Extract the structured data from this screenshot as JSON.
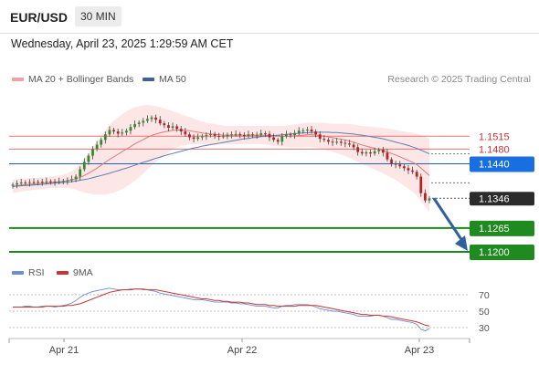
{
  "header": {
    "symbol": "EUR/USD",
    "timeframe": "30 MIN",
    "datetime": "Wednesday, April 23, 2025 1:29:59 AM CET"
  },
  "legend": {
    "ma20_bb": "MA 20 + Bollinger Bands",
    "ma50": "MA 50",
    "credit": "Research © 2025 Trading Central",
    "rsi": "RSI",
    "rsi_ma": "9MA"
  },
  "colors": {
    "bb_fill": "#fde3e3",
    "bb_line": "#f4a0a0",
    "ma20": "#e07a7a",
    "ma50": "#5b7fb4",
    "up": "#2e8b2e",
    "down": "#b22222",
    "resistance": "#e57373",
    "pivot": "#1f5fbf",
    "support": "#1a8a1a",
    "arrow": "#2f5f9e",
    "rsi": "#6a8fd8",
    "rsi_ma": "#cc3333"
  },
  "chart_data": [
    {
      "type": "candlestick",
      "ylim": [
        1.1185,
        1.165
      ],
      "x_labels": [
        "Apr 21",
        "Apr 22",
        "Apr 23"
      ],
      "levels": [
        {
          "value": 1.1515,
          "label": "1.1515",
          "kind": "resistance"
        },
        {
          "value": 1.148,
          "label": "1.1480",
          "kind": "resistance"
        },
        {
          "value": 1.144,
          "label": "1.1440",
          "kind": "pivot"
        },
        {
          "value": 1.1346,
          "label": "1.1346",
          "kind": "last"
        },
        {
          "value": 1.1265,
          "label": "1.1265",
          "kind": "support"
        },
        {
          "value": 1.12,
          "label": "1.1200",
          "kind": "support"
        }
      ],
      "close_series": [
        1.1383,
        1.1387,
        1.1389,
        1.1388,
        1.139,
        1.1389,
        1.1391,
        1.139,
        1.1392,
        1.1391,
        1.139,
        1.1392,
        1.1393,
        1.1395,
        1.1398,
        1.1405,
        1.1425,
        1.1445,
        1.1462,
        1.148,
        1.1492,
        1.1505,
        1.152,
        1.1532,
        1.1528,
        1.1522,
        1.1525,
        1.153,
        1.154,
        1.1548,
        1.1552,
        1.1557,
        1.1562,
        1.1566,
        1.156,
        1.155,
        1.1545,
        1.1538,
        1.1542,
        1.1535,
        1.1528,
        1.152,
        1.1512,
        1.1508,
        1.1512,
        1.1515,
        1.1518,
        1.1521,
        1.1516,
        1.1514,
        1.1515,
        1.1519,
        1.152,
        1.1521,
        1.1518,
        1.1516,
        1.152,
        1.1518,
        1.1519,
        1.1523,
        1.1521,
        1.1512,
        1.1505,
        1.15,
        1.1515,
        1.152,
        1.1518,
        1.1524,
        1.153,
        1.1531,
        1.1533,
        1.1528,
        1.152,
        1.1508,
        1.1505,
        1.15,
        1.1498,
        1.15,
        1.1497,
        1.1495,
        1.1492,
        1.1485,
        1.1472,
        1.1468,
        1.1471,
        1.1468,
        1.1474,
        1.1478,
        1.147,
        1.1452,
        1.144,
        1.1438,
        1.1433,
        1.1428,
        1.1422,
        1.1418,
        1.1405,
        1.136,
        1.134,
        1.1346
      ],
      "ma20": [
        1.1378,
        1.138,
        1.1382,
        1.1383,
        1.1384,
        1.1385,
        1.1386,
        1.1387,
        1.1388,
        1.1389,
        1.139,
        1.1391,
        1.1392,
        1.1394,
        1.1396,
        1.1399,
        1.1403,
        1.1408,
        1.1414,
        1.1421,
        1.1428,
        1.1436,
        1.1444,
        1.1452,
        1.1459,
        1.1466,
        1.1473,
        1.148,
        1.1487,
        1.1494,
        1.15,
        1.1506,
        1.1512,
        1.1517,
        1.1521,
        1.1524,
        1.1527,
        1.1529,
        1.1531,
        1.1532,
        1.1532,
        1.1531,
        1.153,
        1.1528,
        1.1526,
        1.1524,
        1.1522,
        1.1521,
        1.152,
        1.1519,
        1.1518,
        1.1518,
        1.1518,
        1.1518,
        1.1518,
        1.1518,
        1.1518,
        1.1518,
        1.1518,
        1.1518,
        1.1518,
        1.1517,
        1.1516,
        1.1515,
        1.1515,
        1.1515,
        1.1515,
        1.1516,
        1.1517,
        1.1518,
        1.1519,
        1.1519,
        1.1518,
        1.1517,
        1.1515,
        1.1513,
        1.1511,
        1.1509,
        1.1507,
        1.1505,
        1.1502,
        1.1499,
        1.1495,
        1.1491,
        1.1488,
        1.1485,
        1.1482,
        1.1479,
        1.1476,
        1.1472,
        1.1468,
        1.1464,
        1.1459,
        1.1454,
        1.1449,
        1.1444,
        1.1438,
        1.1428,
        1.1418,
        1.1408
      ],
      "ma50": [
        1.1378,
        1.1379,
        1.138,
        1.1381,
        1.1381,
        1.1382,
        1.1383,
        1.1384,
        1.1385,
        1.1386,
        1.1387,
        1.1388,
        1.1389,
        1.139,
        1.1391,
        1.1393,
        1.1395,
        1.1397,
        1.1399,
        1.1402,
        1.1405,
        1.1408,
        1.1411,
        1.1414,
        1.1418,
        1.1421,
        1.1425,
        1.1428,
        1.1432,
        1.1436,
        1.144,
        1.1444,
        1.1447,
        1.1451,
        1.1455,
        1.1458,
        1.1462,
        1.1465,
        1.1468,
        1.1471,
        1.1474,
        1.1477,
        1.148,
        1.1483,
        1.1485,
        1.1488,
        1.149,
        1.1492,
        1.1494,
        1.1496,
        1.1498,
        1.15,
        1.1502,
        1.1504,
        1.1506,
        1.1508,
        1.1509,
        1.1511,
        1.1512,
        1.1514,
        1.1515,
        1.1516,
        1.1517,
        1.1518,
        1.1519,
        1.152,
        1.1521,
        1.1522,
        1.1523,
        1.1524,
        1.1525,
        1.1525,
        1.1526,
        1.1526,
        1.1526,
        1.1526,
        1.1525,
        1.1525,
        1.1524,
        1.1523,
        1.1522,
        1.1521,
        1.1519,
        1.1518,
        1.1516,
        1.1514,
        1.1512,
        1.151,
        1.1508,
        1.1505,
        1.1502,
        1.1499,
        1.1496,
        1.1493,
        1.149,
        1.1486,
        1.1482,
        1.1477,
        1.1472,
        1.1467
      ],
      "bb_width": [
        0.0018,
        0.0018,
        0.0018,
        0.0017,
        0.0017,
        0.0016,
        0.0016,
        0.0016,
        0.0016,
        0.0016,
        0.0016,
        0.0017,
        0.0018,
        0.002,
        0.0024,
        0.003,
        0.0038,
        0.0046,
        0.0055,
        0.0064,
        0.0072,
        0.008,
        0.0088,
        0.0094,
        0.0098,
        0.01,
        0.0102,
        0.0103,
        0.0102,
        0.01,
        0.0097,
        0.0093,
        0.0088,
        0.0082,
        0.0076,
        0.007,
        0.0064,
        0.0058,
        0.0052,
        0.0047,
        0.0043,
        0.004,
        0.0037,
        0.0035,
        0.0033,
        0.0031,
        0.003,
        0.0029,
        0.0028,
        0.0027,
        0.0026,
        0.0025,
        0.0025,
        0.0025,
        0.0025,
        0.0025,
        0.0025,
        0.0025,
        0.0025,
        0.0025,
        0.0026,
        0.0026,
        0.0027,
        0.0028,
        0.0028,
        0.0029,
        0.003,
        0.0031,
        0.0032,
        0.0032,
        0.0033,
        0.0033,
        0.0034,
        0.0035,
        0.0036,
        0.0037,
        0.0038,
        0.004,
        0.0042,
        0.0044,
        0.0046,
        0.0048,
        0.005,
        0.0052,
        0.0054,
        0.0056,
        0.0058,
        0.006,
        0.0062,
        0.0064,
        0.0066,
        0.0068,
        0.0071,
        0.0074,
        0.0077,
        0.008,
        0.0084,
        0.009,
        0.0096,
        0.01
      ],
      "forecast_target": 1.12
    },
    {
      "type": "line",
      "ylim": [
        20,
        90
      ],
      "ticks": [
        70,
        50,
        30
      ],
      "rsi": [
        55,
        55,
        55,
        56,
        56,
        55,
        55,
        56,
        56,
        56,
        55,
        56,
        57,
        58,
        60,
        63,
        67,
        70,
        72,
        74,
        75,
        76,
        77,
        78,
        77,
        76,
        76,
        76,
        77,
        77,
        77,
        76,
        76,
        75,
        74,
        72,
        71,
        70,
        69,
        68,
        67,
        66,
        65,
        64,
        64,
        64,
        63,
        62,
        61,
        61,
        61,
        61,
        60,
        60,
        59,
        59,
        58,
        57,
        56,
        56,
        56,
        55,
        54,
        54,
        56,
        57,
        57,
        58,
        58,
        58,
        58,
        57,
        55,
        53,
        52,
        51,
        50,
        50,
        49,
        48,
        47,
        46,
        44,
        44,
        44,
        44,
        45,
        45,
        44,
        42,
        40,
        40,
        39,
        38,
        37,
        36,
        34,
        28,
        26,
        29
      ],
      "rsi_ma": [
        55,
        55,
        55,
        55,
        55,
        55,
        55,
        55,
        56,
        56,
        56,
        56,
        56,
        57,
        57,
        58,
        59,
        61,
        63,
        65,
        67,
        69,
        71,
        73,
        74,
        75,
        76,
        76,
        76,
        77,
        77,
        77,
        76,
        76,
        76,
        75,
        74,
        73,
        72,
        71,
        70,
        69,
        68,
        67,
        66,
        65,
        65,
        64,
        63,
        63,
        62,
        62,
        61,
        61,
        61,
        60,
        60,
        59,
        58,
        58,
        58,
        57,
        57,
        56,
        56,
        56,
        56,
        56,
        57,
        57,
        57,
        57,
        57,
        56,
        55,
        54,
        53,
        52,
        51,
        50,
        49,
        48,
        47,
        46,
        46,
        45,
        45,
        45,
        44,
        44,
        43,
        42,
        41,
        40,
        39,
        38,
        37,
        35,
        33,
        32
      ]
    }
  ]
}
